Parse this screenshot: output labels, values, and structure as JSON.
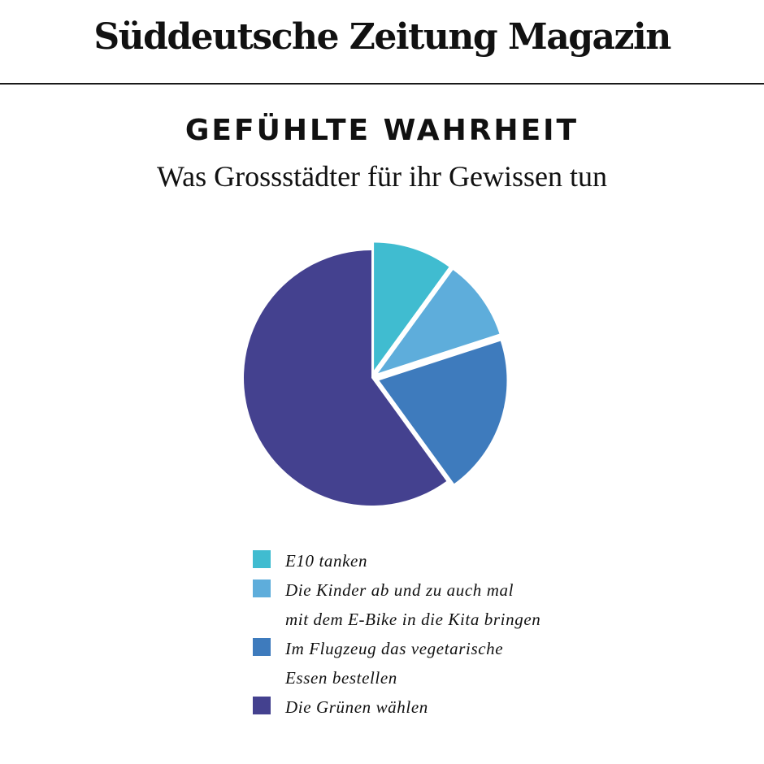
{
  "masthead": {
    "logo_text": "Süddeutsche Zeitung Magazin"
  },
  "chart_data": {
    "type": "pie",
    "title": "GEFÜHLTE WAHRHEIT",
    "subtitle": "Was Grossstädter für ihr Gewissen tun",
    "slices": [
      {
        "label": "E10 tanken",
        "value": 10,
        "color": "#40bcd0",
        "exploded": true
      },
      {
        "label": "Die Kinder ab und zu auch mal mit dem E-Bike in die Kita bringen",
        "value": 10,
        "color": "#5eaddb",
        "exploded": true
      },
      {
        "label": "Im Flugzeug das vegetarische Essen bestellen",
        "value": 20,
        "color": "#3e7bbd",
        "exploded": true
      },
      {
        "label": "Die Grünen wählen",
        "value": 60,
        "color": "#44418f",
        "exploded": false
      }
    ],
    "legend_lines": [
      [
        "E10 tanken"
      ],
      [
        "Die Kinder ab und zu auch mal",
        "mit dem E-Bike in die Kita bringen"
      ],
      [
        "Im Flugzeug das vegetarische",
        "Essen bestellen"
      ],
      [
        "Die Grünen wählen"
      ]
    ],
    "legend_position": "bottom"
  }
}
